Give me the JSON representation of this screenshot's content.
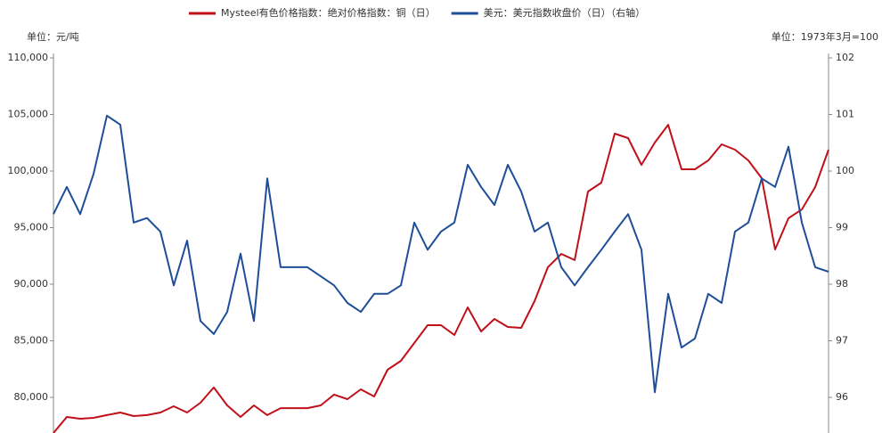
{
  "chart_data": {
    "type": "line",
    "y_unit": "单位：元/吨",
    "y2_unit": "单位：1973年3月=100",
    "ylim": [
      76850,
      110000
    ],
    "yticks": [
      {
        "value": 80000,
        "label": "80,000"
      },
      {
        "value": 85000,
        "label": "85,000"
      },
      {
        "value": 90000,
        "label": "90,000"
      },
      {
        "value": 95000,
        "label": "95,000"
      },
      {
        "value": 100000,
        "label": "100,000"
      },
      {
        "value": 105000,
        "label": "105,000"
      },
      {
        "value": 110000,
        "label": "110,000"
      }
    ],
    "y2lim": [
      95.37,
      102
    ],
    "y2ticks": [
      96,
      97,
      98,
      99,
      100,
      101,
      102
    ],
    "series": [
      {
        "name": "Mysteel有色价格指数：绝对价格指数：铜（日）",
        "color": "#c0101a",
        "values": [
          76850,
          78270,
          78110,
          78190,
          78430,
          78660,
          78350,
          78430,
          78660,
          79210,
          78660,
          79530,
          80870,
          79290,
          78270,
          79290,
          78430,
          79050,
          79050,
          79050,
          79290,
          80240,
          79840,
          80710,
          80080,
          82440,
          83230,
          84800,
          86380,
          86380,
          85510,
          87950,
          85830,
          86930,
          86220,
          86140,
          88500,
          91500,
          92680,
          92130,
          98190,
          98980,
          103310,
          102910,
          100550,
          102520,
          104090,
          100160,
          100160,
          100940,
          102360,
          101890,
          100940,
          99370,
          93070,
          95830,
          96610,
          98580,
          101890
        ]
      },
      {
        "name": "美元：美元指数收盘价（日）（右轴）",
        "color": "#1f4e99",
        "axis": "y2",
        "values": [
          99.24,
          99.72,
          99.24,
          99.95,
          100.98,
          100.82,
          99.09,
          99.17,
          98.93,
          97.98,
          98.77,
          97.35,
          97.12,
          97.51,
          98.54,
          97.35,
          99.87,
          98.3,
          98.3,
          98.3,
          98.14,
          97.98,
          97.67,
          97.51,
          97.83,
          97.83,
          97.98,
          99.09,
          98.61,
          98.93,
          99.09,
          100.11,
          99.72,
          99.4,
          100.11,
          99.64,
          98.93,
          99.09,
          98.3,
          97.98,
          98.3,
          98.61,
          98.93,
          99.24,
          98.61,
          96.09,
          97.83,
          96.88,
          97.04,
          97.83,
          97.67,
          98.93,
          99.09,
          99.87,
          99.72,
          100.43,
          99.09,
          98.3,
          98.22
        ]
      }
    ]
  }
}
